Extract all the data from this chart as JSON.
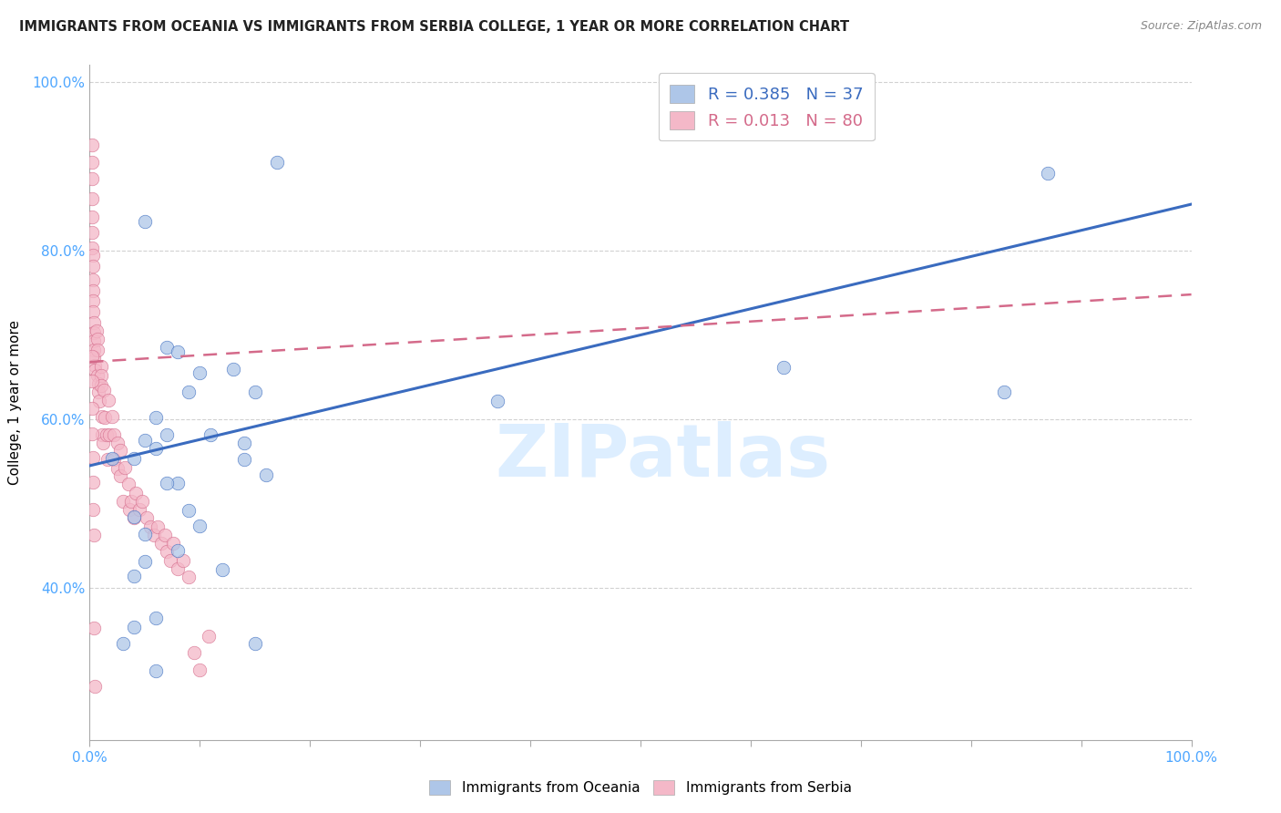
{
  "title": "IMMIGRANTS FROM OCEANIA VS IMMIGRANTS FROM SERBIA COLLEGE, 1 YEAR OR MORE CORRELATION CHART",
  "source": "Source: ZipAtlas.com",
  "ylabel": "College, 1 year or more",
  "legend_label_1": "Immigrants from Oceania",
  "legend_label_2": "Immigrants from Serbia",
  "R1": "0.385",
  "N1": "37",
  "R2": "0.013",
  "N2": "80",
  "color_blue": "#aec6e8",
  "color_pink": "#f4b8c8",
  "line_blue": "#3a6bbf",
  "line_pink": "#d46a8a",
  "watermark": "ZIPatlas",
  "oceania_x": [
    0.02,
    0.04,
    0.17,
    0.05,
    0.07,
    0.08,
    0.1,
    0.13,
    0.05,
    0.06,
    0.07,
    0.08,
    0.09,
    0.06,
    0.04,
    0.05,
    0.11,
    0.14,
    0.14,
    0.16,
    0.07,
    0.09,
    0.1,
    0.15,
    0.08,
    0.04,
    0.05,
    0.03,
    0.04,
    0.06,
    0.12,
    0.37,
    0.63,
    0.83,
    0.87,
    0.06,
    0.15
  ],
  "oceania_y": [
    0.554,
    0.554,
    0.905,
    0.835,
    0.685,
    0.68,
    0.655,
    0.66,
    0.575,
    0.565,
    0.582,
    0.524,
    0.632,
    0.602,
    0.484,
    0.464,
    0.582,
    0.572,
    0.552,
    0.534,
    0.524,
    0.492,
    0.474,
    0.632,
    0.444,
    0.414,
    0.432,
    0.334,
    0.354,
    0.364,
    0.422,
    0.622,
    0.662,
    0.632,
    0.892,
    0.302,
    0.334
  ],
  "serbia_x": [
    0.002,
    0.002,
    0.002,
    0.002,
    0.002,
    0.002,
    0.002,
    0.003,
    0.003,
    0.003,
    0.003,
    0.003,
    0.003,
    0.004,
    0.004,
    0.004,
    0.004,
    0.004,
    0.005,
    0.005,
    0.006,
    0.007,
    0.007,
    0.007,
    0.008,
    0.008,
    0.009,
    0.01,
    0.01,
    0.01,
    0.011,
    0.011,
    0.012,
    0.013,
    0.014,
    0.015,
    0.016,
    0.017,
    0.018,
    0.02,
    0.022,
    0.022,
    0.025,
    0.025,
    0.028,
    0.028,
    0.03,
    0.032,
    0.035,
    0.036,
    0.038,
    0.04,
    0.042,
    0.045,
    0.048,
    0.052,
    0.055,
    0.058,
    0.062,
    0.065,
    0.068,
    0.07,
    0.073,
    0.076,
    0.08,
    0.085,
    0.09,
    0.095,
    0.1,
    0.108,
    0.002,
    0.002,
    0.002,
    0.002,
    0.003,
    0.003,
    0.003,
    0.004,
    0.004,
    0.005
  ],
  "serbia_y": [
    0.925,
    0.905,
    0.885,
    0.862,
    0.84,
    0.822,
    0.803,
    0.795,
    0.782,
    0.765,
    0.752,
    0.74,
    0.728,
    0.715,
    0.703,
    0.693,
    0.682,
    0.673,
    0.664,
    0.658,
    0.705,
    0.695,
    0.682,
    0.652,
    0.642,
    0.632,
    0.622,
    0.663,
    0.652,
    0.64,
    0.603,
    0.582,
    0.572,
    0.635,
    0.602,
    0.582,
    0.552,
    0.623,
    0.582,
    0.603,
    0.582,
    0.552,
    0.572,
    0.542,
    0.563,
    0.533,
    0.503,
    0.543,
    0.523,
    0.493,
    0.503,
    0.483,
    0.513,
    0.493,
    0.503,
    0.483,
    0.473,
    0.463,
    0.473,
    0.453,
    0.463,
    0.443,
    0.433,
    0.453,
    0.423,
    0.433,
    0.413,
    0.323,
    0.303,
    0.343,
    0.675,
    0.645,
    0.613,
    0.583,
    0.555,
    0.525,
    0.493,
    0.463,
    0.353,
    0.283
  ],
  "xlim": [
    0.0,
    1.0
  ],
  "ylim": [
    0.22,
    1.02
  ],
  "grid_color": "#cccccc",
  "bg_color": "#ffffff",
  "tick_label_color": "#4da6ff",
  "blue_line_x0": 0.0,
  "blue_line_x1": 1.0,
  "blue_line_y0": 0.545,
  "blue_line_y1": 0.855,
  "pink_line_x0": 0.0,
  "pink_line_x1": 1.0,
  "pink_line_y0": 0.668,
  "pink_line_y1": 0.748
}
